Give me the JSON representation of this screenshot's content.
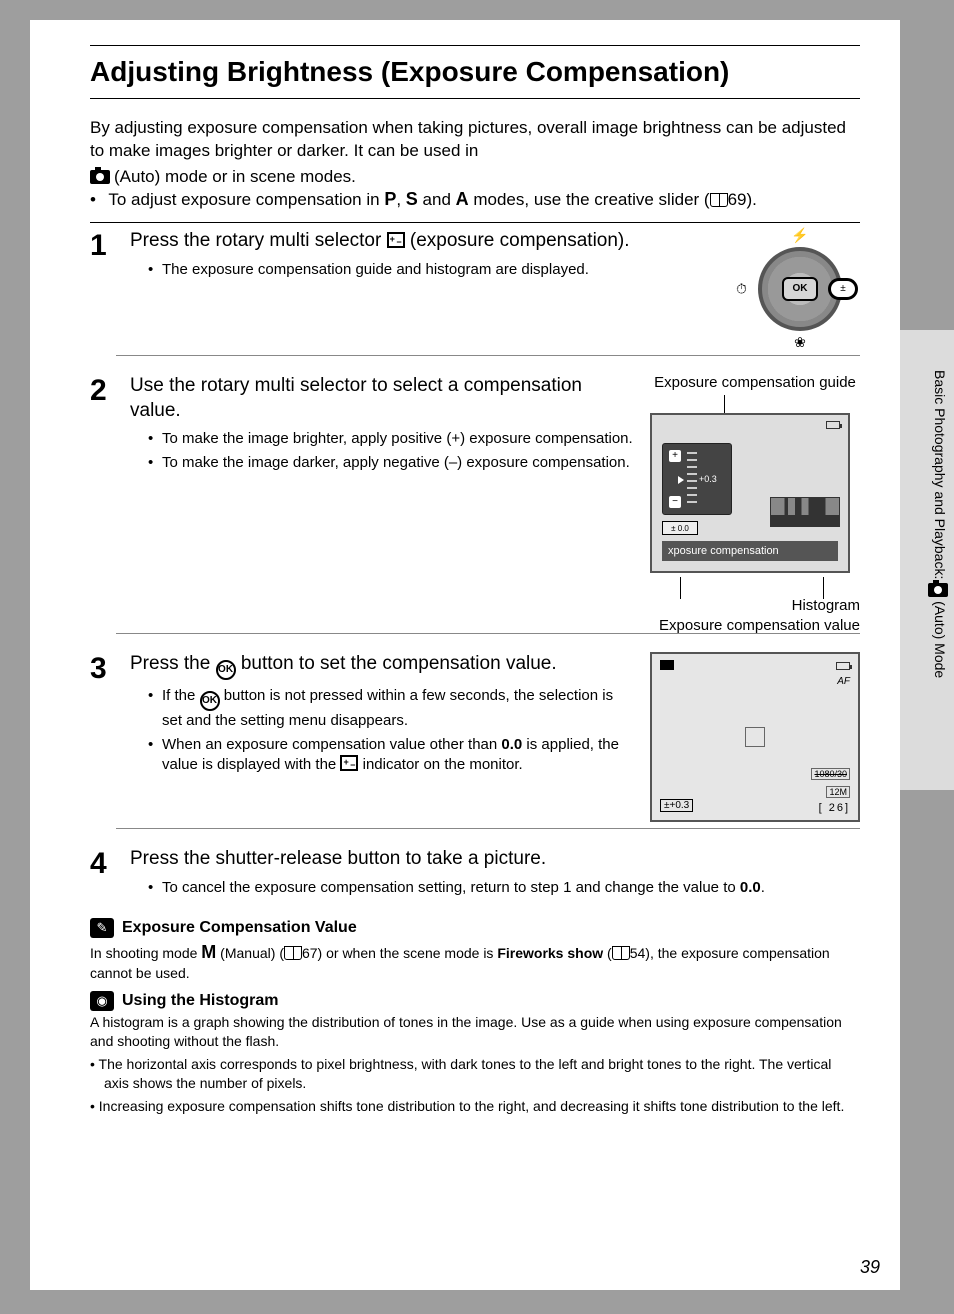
{
  "page": {
    "title": "Adjusting Brightness (Exposure Compensation)",
    "number": "39",
    "sidebar_text": "Basic Photography and Playback: ■ (Auto) Mode"
  },
  "intro": {
    "line1": "By adjusting exposure compensation when taking pictures, overall image brightness can be adjusted to make images brighter or darker. It can be used in",
    "line2": " (Auto) mode or in scene modes.",
    "bullet1_pre": "To adjust exposure compensation in ",
    "modes": {
      "p": "P",
      "s": "S",
      "a": "A"
    },
    "bullet1_mid": ", ",
    "bullet1_and": " and ",
    "bullet1_post": " modes, use the creative slider (",
    "ref1": "69).",
    "mode_m": "M"
  },
  "steps": {
    "s1": {
      "num": "1",
      "title_pre": "Press the rotary multi selector ",
      "title_post": " (exposure compensation).",
      "b1": "The exposure compensation guide and histogram are displayed.",
      "dial_ok": "OK"
    },
    "s2": {
      "num": "2",
      "title": "Use the rotary multi selector to select a compensation value.",
      "b1": "To make the image brighter, apply positive (+) exposure compensation.",
      "b2": "To make the image darker, apply negative (–) exposure compensation.",
      "fig": {
        "top_label": "Exposure compensation guide",
        "ec_mark": "+0.3",
        "ec_badge": "±0.0",
        "caption": "xposure compensation",
        "callout_histo": "Histogram",
        "callout_ecv": "Exposure compensation value"
      }
    },
    "s3": {
      "num": "3",
      "title_pre": "Press the ",
      "title_post": " button to set the compensation value.",
      "b1_pre": "If the ",
      "b1_post": " button is not pressed within a few seconds, the selection is set and the setting menu disappears.",
      "b2_pre": "When an exposure compensation value other than ",
      "b2_bold": "0.0",
      "b2_mid": " is applied, the value is displayed with the ",
      "b2_post": " indicator on the monitor.",
      "fig": {
        "ec": "±+0.3",
        "hd": "1080/30",
        "sz": "12M",
        "shots": "[   26]",
        "af": "AF"
      }
    },
    "s4": {
      "num": "4",
      "title": "Press the shutter-release button to take a picture.",
      "b1_pre": "To cancel the exposure compensation setting, return to step 1 and change the value to ",
      "b1_bold": "0.0",
      "b1_post": "."
    }
  },
  "notes": {
    "n1": {
      "title": "Exposure Compensation Value",
      "body_pre": "In shooting mode ",
      "body_mid1": " (Manual) (",
      "ref1": "67) or when the scene mode is ",
      "bold": "Fireworks show",
      "body_mid2": " (",
      "ref2": "54), the exposure compensation cannot be used."
    },
    "n2": {
      "title": "Using the Histogram",
      "p1": "A histogram is a graph showing the distribution of tones in the image. Use as a guide when using exposure compensation and shooting without the flash.",
      "b1": "The horizontal axis corresponds to pixel brightness, with dark tones to the left and bright tones to the right. The vertical axis shows the number of pixels.",
      "b2": "Increasing exposure compensation shifts tone distribution to the right, and decreasing it shifts tone distribution to the left."
    }
  }
}
